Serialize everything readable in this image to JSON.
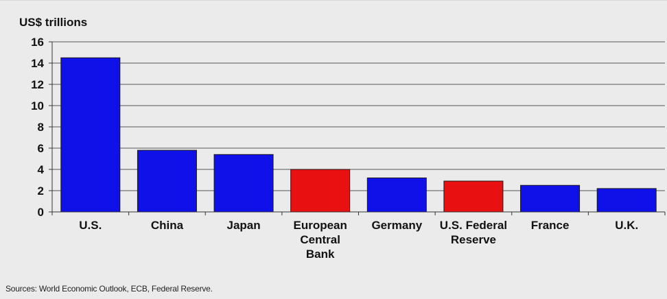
{
  "chart_data": {
    "type": "bar",
    "unit_label": "US$ trillions",
    "categories": [
      [
        "U.S."
      ],
      [
        "China"
      ],
      [
        "Japan"
      ],
      [
        "European",
        "Central",
        "Bank"
      ],
      [
        "Germany"
      ],
      [
        "U.S. Federal",
        "Reserve"
      ],
      [
        "France"
      ],
      [
        "U.K."
      ]
    ],
    "values": [
      14.5,
      5.8,
      5.4,
      4.0,
      3.2,
      2.9,
      2.5,
      2.2
    ],
    "bar_colors": [
      "#1010e8",
      "#1010e8",
      "#1010e8",
      "#e81010",
      "#1010e8",
      "#e81010",
      "#1010e8",
      "#1010e8"
    ],
    "ylim": [
      0,
      16
    ],
    "yticks": [
      0,
      2,
      4,
      6,
      8,
      10,
      12,
      14,
      16
    ],
    "grid": true
  },
  "source_note": "Sources: World Economic Outlook, ECB, Federal Reserve."
}
